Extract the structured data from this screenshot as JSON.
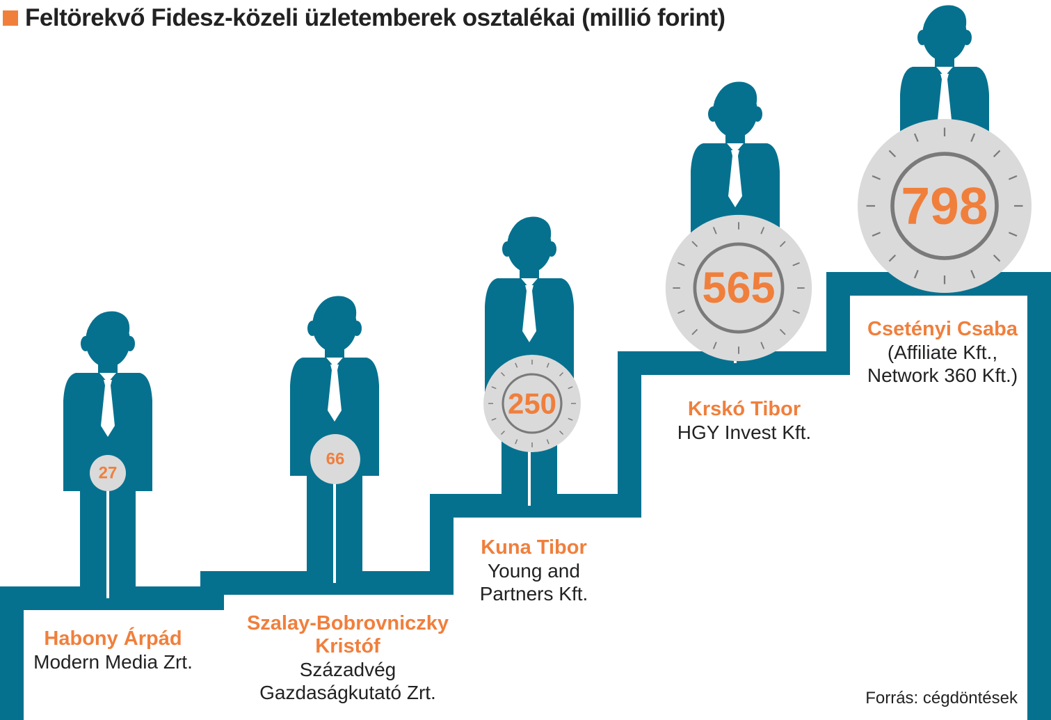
{
  "title": "Feltörekvő Fidesz-közeli üzletemberek osztalékai (millió forint)",
  "source": "Forrás: cégdöntések",
  "colors": {
    "accent": "#f07f3c",
    "figure": "#06718f",
    "dial": "#dadada",
    "dial_ring": "#7a7a7a",
    "stair": "#06718f"
  },
  "chart_data": {
    "type": "bar",
    "title": "Feltörekvő Fidesz-közeli üzletemberek osztalékai (millió forint)",
    "unit": "millió forint",
    "categories": [
      "Habony Árpád",
      "Szalay-Bobrovniczky Kristóf",
      "Kuna Tibor",
      "Krskó Tibor",
      "Csetényi Csaba"
    ],
    "values": [
      27,
      66,
      250,
      565,
      798
    ],
    "value_labels": [
      "27",
      "66",
      "250",
      "565",
      "798"
    ],
    "entries": [
      {
        "name_lines": [
          "Habony Árpád"
        ],
        "company_lines": [
          "Modern Media Zrt."
        ]
      },
      {
        "name_lines": [
          "Szalay-Bobrovniczky",
          "Kristóf"
        ],
        "company_lines": [
          "Századvég",
          "Gazdaságkutató Zrt."
        ]
      },
      {
        "name_lines": [
          "Kuna Tibor"
        ],
        "company_lines": [
          "Young and",
          "Partners Kft."
        ]
      },
      {
        "name_lines": [
          "Krskó Tibor"
        ],
        "company_lines": [
          "HGY Invest Kft."
        ]
      },
      {
        "name_lines": [
          "Csetényi Csaba"
        ],
        "company_lines": [
          "(Affiliate Kft.,",
          "Network 360 Kft.)"
        ]
      }
    ],
    "legend": "none",
    "grid": false
  }
}
